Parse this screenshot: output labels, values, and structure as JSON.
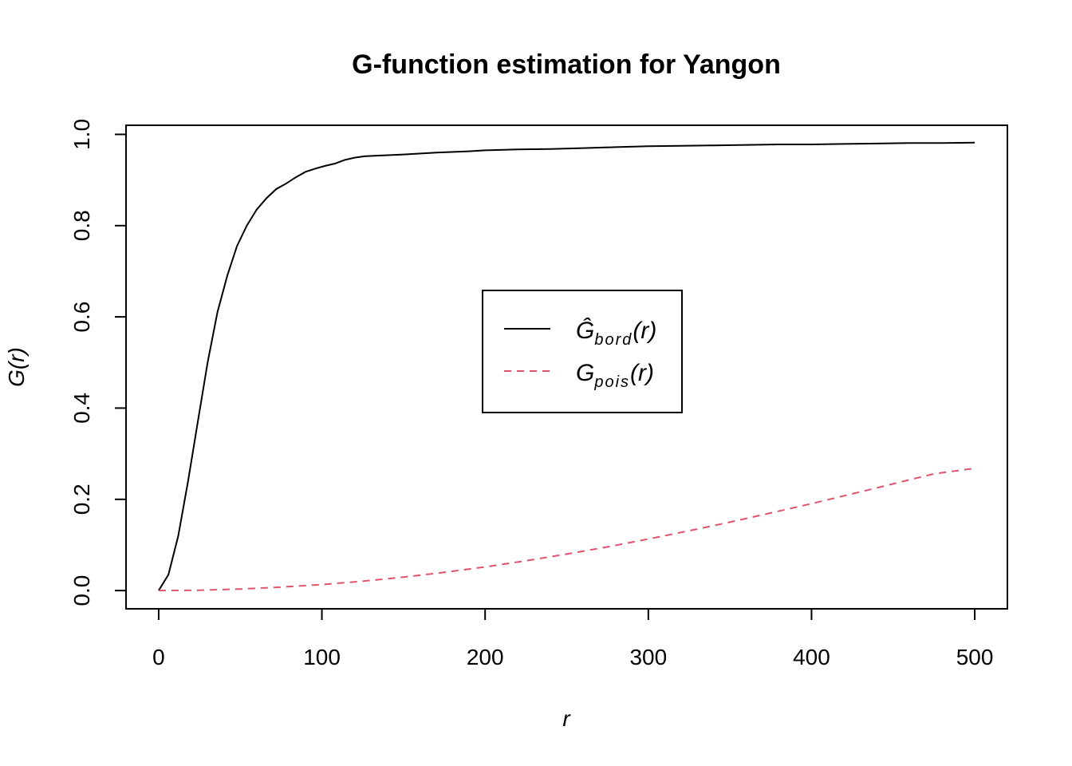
{
  "chart_data": {
    "type": "line",
    "title": "G-function estimation for Yangon",
    "xlabel": "r",
    "ylabel": "G(r)",
    "xlim": [
      -20,
      520
    ],
    "ylim": [
      -0.04,
      1.02
    ],
    "x_ticks": [
      0,
      100,
      200,
      300,
      400,
      500
    ],
    "y_ticks": [
      0.0,
      0.2,
      0.4,
      0.6,
      0.8,
      1.0
    ],
    "x_tick_labels": [
      "0",
      "100",
      "200",
      "300",
      "400",
      "500"
    ],
    "y_tick_labels": [
      "0.0",
      "0.2",
      "0.4",
      "0.6",
      "0.8",
      "1.0"
    ],
    "grid": false,
    "legend_position": "center",
    "series": [
      {
        "name": "Ĝbord(r)",
        "legend_main": "Ĝ",
        "legend_sub": "bord",
        "legend_tail": "(r)",
        "color": "#000000",
        "dash": "solid",
        "x": [
          0,
          6,
          12,
          18,
          24,
          30,
          36,
          42,
          48,
          54,
          60,
          66,
          72,
          78,
          84,
          90,
          96,
          102,
          108,
          114,
          120,
          126,
          132,
          150,
          170,
          190,
          200,
          220,
          240,
          260,
          280,
          300,
          320,
          340,
          360,
          380,
          400,
          420,
          440,
          460,
          480,
          500
        ],
        "y": [
          0.0,
          0.035,
          0.12,
          0.24,
          0.37,
          0.5,
          0.61,
          0.69,
          0.755,
          0.8,
          0.835,
          0.86,
          0.88,
          0.892,
          0.906,
          0.918,
          0.925,
          0.931,
          0.936,
          0.944,
          0.949,
          0.952,
          0.953,
          0.956,
          0.96,
          0.963,
          0.965,
          0.967,
          0.968,
          0.97,
          0.972,
          0.974,
          0.975,
          0.976,
          0.977,
          0.978,
          0.978,
          0.979,
          0.98,
          0.981,
          0.981,
          0.982
        ]
      },
      {
        "name": "Gpois(r)",
        "legend_main": "G",
        "legend_sub": "pois",
        "legend_tail": "(r)",
        "color": "#df536b",
        "dash": "dashed",
        "x": [
          0,
          25,
          50,
          75,
          100,
          125,
          150,
          175,
          200,
          225,
          250,
          275,
          300,
          325,
          350,
          375,
          400,
          425,
          450,
          475,
          500
        ],
        "y": [
          0.0,
          0.0008,
          0.0033,
          0.0075,
          0.0132,
          0.0205,
          0.0295,
          0.04,
          0.0519,
          0.0653,
          0.08,
          0.0958,
          0.113,
          0.131,
          0.15,
          0.17,
          0.1905,
          0.212,
          0.234,
          0.256,
          0.268
        ]
      }
    ]
  }
}
